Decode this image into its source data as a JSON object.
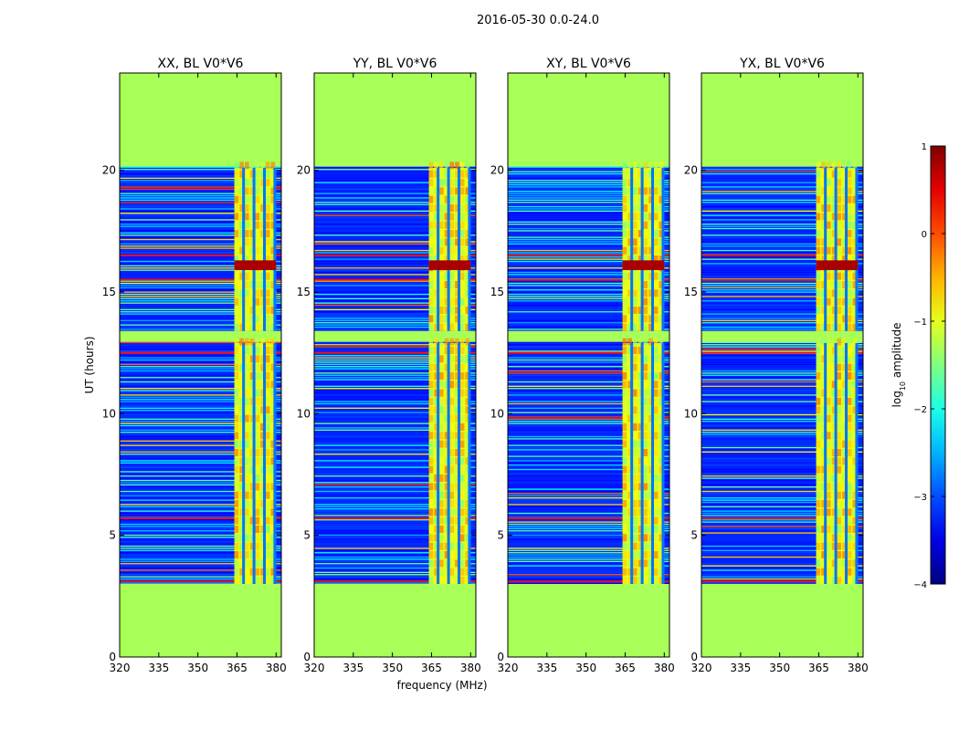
{
  "figure_title": "2016-05-30 0.0-24.0",
  "chart_data": {
    "type": "heatmap",
    "title": "2016-05-30 0.0-24.0",
    "xlabel": "frequency (MHz)",
    "ylabel": "UT (hours)",
    "xlim": [
      320,
      382
    ],
    "ylim": [
      0,
      24
    ],
    "xticks": [
      320,
      335,
      350,
      365,
      380
    ],
    "yticks": [
      0,
      5,
      10,
      15,
      20
    ],
    "panels": [
      {
        "title": "XX, BL V0*V6",
        "polarization": "XX"
      },
      {
        "title": "YY, BL V0*V6",
        "polarization": "YY"
      },
      {
        "title": "XY, BL V0*V6",
        "polarization": "XY"
      },
      {
        "title": "YX, BL V0*V6",
        "polarization": "YX"
      }
    ],
    "colormap": "jet",
    "colorbar": {
      "label_prefix": "log",
      "label_subscript": "10",
      "label_suffix": " amplitude",
      "range": [
        -4,
        1
      ],
      "ticks": [
        1,
        0,
        -1,
        -2,
        -3,
        -4
      ],
      "tick_labels": [
        "1",
        "0",
        "−1",
        "−2",
        "−3",
        "−4"
      ]
    },
    "masked_value": -1.3,
    "observed_ut_range": [
      3.0,
      20.1
    ],
    "gap_ut_range": [
      12.9,
      13.4
    ],
    "low_band_value": -3.2,
    "rfi_band_mhz": [
      364,
      380
    ],
    "rfi_value": -1.0,
    "rfi_peak_ut": [
      15.9,
      16.3
    ],
    "rfi_peak_value": 0.4
  }
}
